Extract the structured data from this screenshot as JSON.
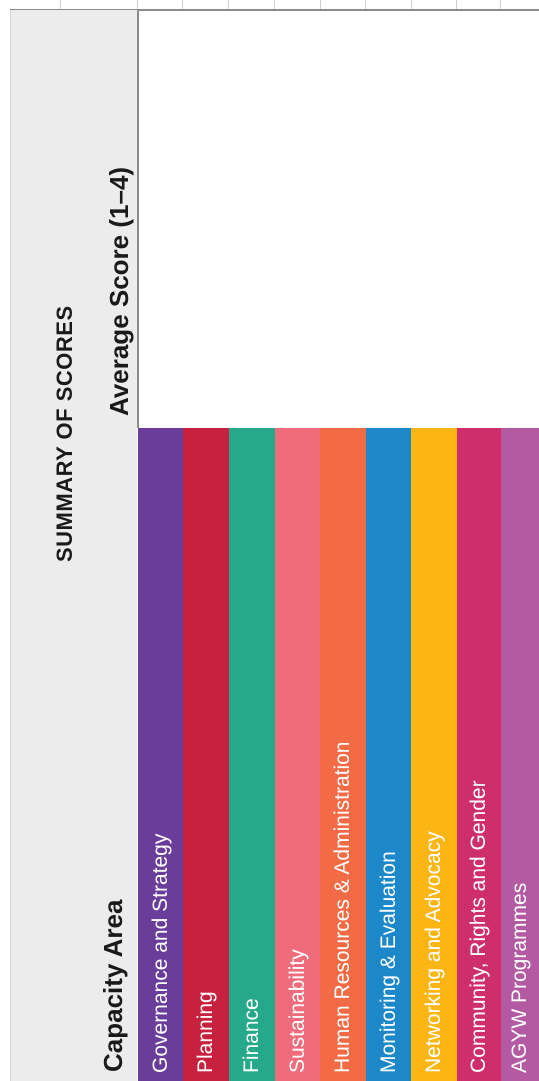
{
  "table": {
    "title": "SUMMARY OF SCORES",
    "header_capacity": "Capacity Area",
    "header_score": "Average Score (1–4)",
    "rows": [
      {
        "label": "Governance and Strategy",
        "color": "#6a3d9a"
      },
      {
        "label": "Planning",
        "color": "#c8203f"
      },
      {
        "label": "Finance",
        "color": "#26a98a"
      },
      {
        "label": "Sustainability",
        "color": "#f06b7c"
      },
      {
        "label": "Human Resources & Administration",
        "color": "#f26b45"
      },
      {
        "label": "Monitoring & Evaluation",
        "color": "#1d88c9"
      },
      {
        "label": "Networking and Advocacy",
        "color": "#fbb615"
      },
      {
        "label": "Community, Rights and Gender",
        "color": "#cf2e6c"
      },
      {
        "label": "AGYW Programmes",
        "color": "#b35aa3"
      }
    ]
  }
}
